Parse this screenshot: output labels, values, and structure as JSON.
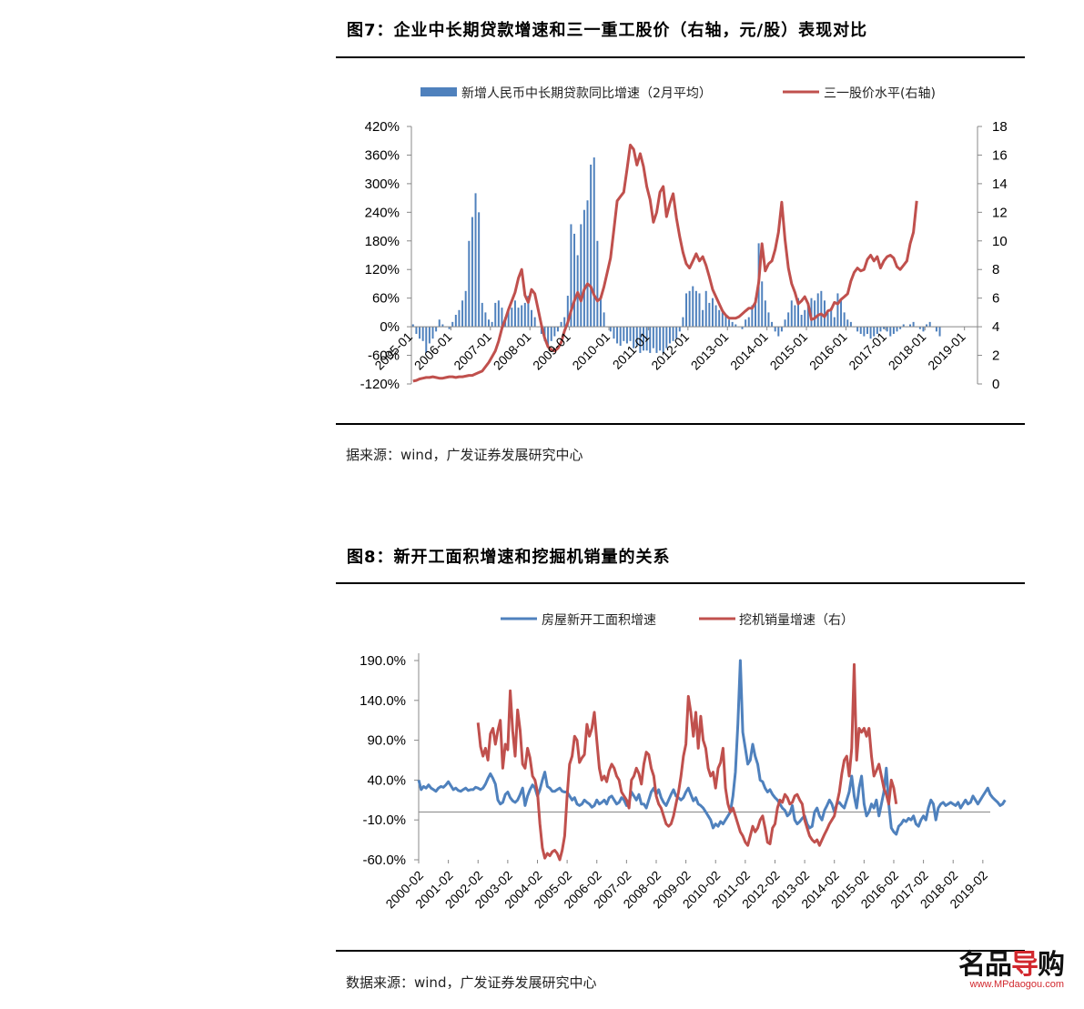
{
  "fig7": {
    "title": "图7：企业中长期贷款增速和三一重工股价（右轴，元/股）表现对比",
    "source": "据来源：wind，广发证券发展研究中心",
    "legend_bar": "新增人民币中长期贷款同比增速（2月平均）",
    "legend_line": "三一股价水平(右轴)",
    "y_left_ticks": [
      "420%",
      "360%",
      "300%",
      "240%",
      "180%",
      "120%",
      "60%",
      "0%",
      "-60%",
      "-120%"
    ],
    "y_right_ticks": [
      "18",
      "16",
      "14",
      "12",
      "10",
      "8",
      "6",
      "4",
      "2",
      "0"
    ],
    "x_ticks": [
      "2005-01",
      "2006-01",
      "2007-01",
      "2008-01",
      "2009-01",
      "2010-01",
      "2011-01",
      "2012-01",
      "2013-01",
      "2014-01",
      "2015-01",
      "2016-01",
      "2017-01",
      "2018-01",
      "2019-01"
    ]
  },
  "fig8": {
    "title": "图8：新开工面积增速和挖掘机销量的关系",
    "source": "数据来源：wind，广发证券发展研究中心",
    "legend_blue": "房屋新开工面积增速",
    "legend_red": "挖机销量增速（右）",
    "y_ticks": [
      "190.0%",
      "140.0%",
      "90.0%",
      "40.0%",
      "-10.0%",
      "-60.0%"
    ],
    "x_ticks": [
      "2000-02",
      "2001-02",
      "2002-02",
      "2003-02",
      "2004-02",
      "2005-02",
      "2006-02",
      "2007-02",
      "2008-02",
      "2009-02",
      "2010-02",
      "2011-02",
      "2012-02",
      "2013-02",
      "2014-02",
      "2015-02",
      "2016-02",
      "2017-02",
      "2018-02",
      "2019-02"
    ]
  },
  "watermark": {
    "logo_main": "名品",
    "logo_accent": "导",
    "logo_end": "购",
    "url": "www.MPdaogou.com"
  },
  "colors": {
    "bar": "#4f81bd",
    "stock_line": "#c0504d",
    "blue_line": "#4f81bd",
    "red_line": "#c0504d"
  },
  "chart_data": [
    {
      "type": "bar+line",
      "title": "企业中长期贷款增速和三一重工股价（右轴，元/股）表现对比",
      "y_left_lim": [
        -1.2,
        4.2
      ],
      "y_right_lim": [
        0,
        18
      ],
      "x_range": [
        2005.0,
        2019.33
      ],
      "series": [
        {
          "name": "新增人民币中长期贷款同比增速（2月平均）",
          "axis": "left",
          "kind": "bar",
          "x_start": 2005.0,
          "step_months": 1,
          "values": [
            0.05,
            -0.15,
            -0.25,
            -0.3,
            -0.55,
            -0.35,
            -0.25,
            -0.1,
            0.15,
            0.05,
            0.0,
            -0.05,
            0.1,
            0.25,
            0.35,
            0.55,
            0.75,
            1.8,
            2.3,
            2.8,
            2.4,
            0.5,
            0.3,
            0.15,
            0.1,
            0.5,
            0.55,
            0.4,
            0.2,
            0.35,
            0.4,
            0.55,
            0.4,
            0.45,
            0.5,
            0.65,
            0.35,
            0.2,
            0.0,
            -0.15,
            -0.3,
            -0.4,
            -0.3,
            -0.2,
            -0.1,
            0.1,
            0.2,
            0.65,
            2.15,
            1.95,
            1.5,
            2.15,
            2.45,
            2.65,
            3.4,
            3.55,
            1.8,
            0.65,
            0.3,
            0.0,
            -0.1,
            -0.25,
            -0.35,
            -0.4,
            -0.3,
            -0.35,
            -0.3,
            -0.45,
            -0.4,
            -0.55,
            -0.5,
            -0.5,
            -0.55,
            -0.45,
            -0.55,
            -0.5,
            -0.55,
            -0.45,
            -0.35,
            -0.3,
            -0.25,
            -0.1,
            0.2,
            0.7,
            0.75,
            0.85,
            0.75,
            0.7,
            0.35,
            0.75,
            0.5,
            0.6,
            0.45,
            0.35,
            0.3,
            0.25,
            0.15,
            0.1,
            0.05,
            0.0,
            -0.05,
            0.15,
            0.2,
            0.45,
            0.6,
            1.75,
            0.95,
            0.55,
            0.3,
            0.1,
            -0.1,
            -0.2,
            -0.1,
            0.15,
            0.3,
            0.55,
            0.45,
            0.6,
            0.25,
            0.35,
            0.5,
            0.6,
            0.55,
            0.7,
            0.75,
            0.55,
            0.3,
            0.4,
            0.2,
            0.7,
            0.55,
            0.3,
            0.15,
            0.1,
            0.0,
            -0.1,
            -0.15,
            -0.2,
            -0.15,
            -0.25,
            -0.2,
            -0.15,
            -0.1,
            -0.05,
            -0.1,
            -0.2,
            -0.15,
            -0.1,
            -0.05,
            0.05,
            0.0,
            0.05,
            0.1,
            0.0,
            -0.05,
            -0.1,
            0.05,
            0.1,
            0.0,
            -0.1,
            -0.2
          ]
        },
        {
          "name": "三一股价水平(右轴)",
          "axis": "right",
          "kind": "line",
          "x_start": 2005.0,
          "step_months": 1,
          "values": [
            0.2,
            0.25,
            0.35,
            0.4,
            0.45,
            0.45,
            0.5,
            0.45,
            0.4,
            0.4,
            0.45,
            0.5,
            0.5,
            0.45,
            0.5,
            0.5,
            0.55,
            0.6,
            0.6,
            0.7,
            0.8,
            0.9,
            1.2,
            1.5,
            1.9,
            2.3,
            3.0,
            3.9,
            4.5,
            5.2,
            5.8,
            6.4,
            7.4,
            8.0,
            6.2,
            5.7,
            6.6,
            6.3,
            5.2,
            4.1,
            3.2,
            2.6,
            2.4,
            2.3,
            2.5,
            2.9,
            3.7,
            4.3,
            5.1,
            5.8,
            6.4,
            5.8,
            6.6,
            7.0,
            6.8,
            6.2,
            5.8,
            6.0,
            6.8,
            7.8,
            8.8,
            10.8,
            12.8,
            13.1,
            13.4,
            15.0,
            16.7,
            16.4,
            15.3,
            16.1,
            15.2,
            13.8,
            12.9,
            11.3,
            12.0,
            13.4,
            13.8,
            11.7,
            12.6,
            13.3,
            11.6,
            10.3,
            9.2,
            8.4,
            8.1,
            8.6,
            9.1,
            8.6,
            8.9,
            8.3,
            7.5,
            6.6,
            6.1,
            5.6,
            5.1,
            4.8,
            4.6,
            4.6,
            4.6,
            4.7,
            4.9,
            5.1,
            5.3,
            5.3,
            5.7,
            7.1,
            9.8,
            7.9,
            8.4,
            8.6,
            9.4,
            10.6,
            12.7,
            10.1,
            8.1,
            7.0,
            6.4,
            5.6,
            5.8,
            6.1,
            5.6,
            4.5,
            4.6,
            4.8,
            4.9,
            4.7,
            5.1,
            5.2,
            5.7,
            5.6,
            5.9,
            6.1,
            6.3,
            7.2,
            7.8,
            8.1,
            7.9,
            8.0,
            8.7,
            9.0,
            8.6,
            8.9,
            8.1,
            8.6,
            8.9,
            9.0,
            8.8,
            8.2,
            8.0,
            8.3,
            8.6,
            9.8,
            10.6,
            12.8
          ]
        }
      ],
      "x_tick_labels": [
        "2005-01",
        "2006-01",
        "2007-01",
        "2008-01",
        "2009-01",
        "2010-01",
        "2011-01",
        "2012-01",
        "2013-01",
        "2014-01",
        "2015-01",
        "2016-01",
        "2017-01",
        "2018-01",
        "2019-01"
      ]
    },
    {
      "type": "line",
      "title": "新开工面积增速和挖掘机销量的关系",
      "ylim": [
        -0.6,
        1.9
      ],
      "x_range": [
        2000.0,
        2019.25
      ],
      "series": [
        {
          "name": "房屋新开工面积增速",
          "x_start": 2000.0,
          "step_months": 1,
          "values": [
            0.4,
            0.28,
            0.32,
            0.3,
            0.34,
            0.3,
            0.28,
            0.26,
            0.3,
            0.32,
            0.31,
            0.34,
            0.38,
            0.33,
            0.28,
            0.3,
            0.27,
            0.26,
            0.28,
            0.3,
            0.27,
            0.28,
            0.28,
            0.31,
            0.3,
            0.28,
            0.3,
            0.35,
            0.42,
            0.48,
            0.42,
            0.35,
            0.15,
            0.1,
            0.12,
            0.22,
            0.25,
            0.18,
            0.14,
            0.12,
            0.15,
            0.22,
            0.3,
            0.08,
            0.2,
            0.28,
            0.34,
            0.3,
            0.2,
            0.28,
            0.4,
            0.5,
            0.32,
            0.3,
            0.26,
            0.26,
            0.28,
            0.3,
            0.26,
            0.25,
            0.25,
            0.2,
            0.15,
            0.18,
            0.1,
            0.08,
            0.1,
            0.15,
            0.12,
            0.1,
            0.06,
            0.08,
            0.15,
            0.1,
            0.12,
            0.15,
            0.1,
            0.18,
            0.2,
            0.15,
            0.1,
            0.12,
            0.18,
            0.15,
            0.08,
            0.12,
            0.25,
            0.2,
            0.15,
            0.22,
            0.1,
            0.1,
            0.05,
            0.15,
            0.25,
            0.3,
            0.22,
            0.28,
            0.18,
            0.12,
            0.08,
            0.15,
            0.22,
            0.28,
            0.2,
            0.18,
            0.15,
            0.18,
            0.25,
            0.3,
            0.22,
            0.14,
            0.18,
            0.1,
            0.08,
            0.05,
            0.0,
            -0.05,
            -0.1,
            -0.2,
            -0.15,
            -0.18,
            -0.12,
            -0.15,
            -0.1,
            -0.05,
            0.0,
            0.2,
            0.5,
            1.1,
            1.9,
            1.0,
            0.8,
            0.6,
            0.65,
            0.85,
            0.7,
            0.6,
            0.4,
            0.38,
            0.3,
            0.25,
            0.28,
            0.22,
            0.18,
            0.15,
            0.1,
            0.05,
            0.02,
            -0.05,
            -0.02,
            0.08,
            -0.1,
            -0.15,
            -0.12,
            -0.08,
            -0.05,
            -0.15,
            -0.2,
            -0.18,
            0.0,
            0.05,
            -0.05,
            -0.1,
            0.02,
            0.08,
            0.15,
            0.1,
            0.0,
            0.1,
            0.12,
            0.08,
            0.05,
            0.15,
            0.25,
            0.45,
            0.2,
            0.05,
            0.3,
            0.45,
            0.1,
            -0.05,
            0.0,
            0.1,
            0.05,
            0.15,
            -0.05,
            0.1,
            0.25,
            0.55,
            0.1,
            -0.2,
            -0.25,
            -0.28,
            -0.18,
            -0.15,
            -0.1,
            -0.12,
            -0.08,
            -0.1,
            -0.05,
            -0.15,
            -0.18,
            -0.1,
            -0.05,
            -0.1,
            0.05,
            0.15,
            0.1,
            -0.1,
            0.05,
            0.1,
            0.12,
            0.08,
            0.1,
            0.12,
            0.1,
            0.08,
            0.12,
            0.05,
            0.1,
            0.15,
            0.1,
            0.12,
            0.2,
            0.15,
            0.1,
            0.15,
            0.2,
            0.25,
            0.3,
            0.22,
            0.18,
            0.15,
            0.12,
            0.08,
            0.1,
            0.15
          ]
        },
        {
          "name": "挖机销量增速（右）",
          "x_start": 2002.0,
          "step_months": 1,
          "values": [
            1.12,
            0.82,
            0.7,
            0.8,
            0.65,
            0.98,
            1.05,
            0.85,
            1.02,
            1.15,
            0.55,
            0.85,
            0.78,
            1.52,
            1.02,
            0.7,
            1.28,
            1.02,
            0.6,
            0.55,
            0.8,
            0.68,
            0.45,
            0.4,
            0.25,
            -0.15,
            -0.45,
            -0.58,
            -0.52,
            -0.55,
            -0.5,
            -0.48,
            -0.52,
            -0.6,
            -0.48,
            -0.3,
            0.2,
            0.6,
            0.7,
            0.95,
            0.9,
            0.62,
            0.68,
            0.72,
            1.1,
            0.95,
            1.05,
            1.25,
            0.9,
            0.55,
            0.4,
            0.45,
            0.38,
            0.52,
            0.6,
            0.55,
            0.45,
            0.4,
            0.25,
            0.2,
            0.15,
            0.05,
            0.4,
            0.45,
            0.55,
            0.48,
            0.35,
            0.6,
            0.75,
            0.72,
            0.55,
            0.45,
            0.2,
            0.1,
            0.05,
            -0.05,
            -0.15,
            -0.18,
            -0.15,
            -0.05,
            0.1,
            0.25,
            0.45,
            0.7,
            0.85,
            1.45,
            1.25,
            0.95,
            1.25,
            0.8,
            1.2,
            0.9,
            0.8,
            0.55,
            0.45,
            0.5,
            0.3,
            0.55,
            0.62,
            0.8,
            0.3,
            0.1,
            0.0,
            0.05,
            -0.05,
            -0.15,
            -0.25,
            -0.3,
            -0.38,
            -0.42,
            -0.3,
            -0.18,
            -0.25,
            -0.2,
            -0.1,
            -0.05,
            -0.2,
            -0.38,
            -0.4,
            -0.2,
            -0.15,
            0.05,
            0.15,
            0.12,
            0.22,
            0.18,
            0.1,
            0.12,
            0.2,
            0.22,
            0.15,
            0.1,
            -0.1,
            -0.2,
            -0.3,
            -0.35,
            -0.38,
            -0.35,
            -0.42,
            -0.35,
            -0.28,
            -0.22,
            -0.15,
            -0.1,
            -0.05,
            0.1,
            0.25,
            0.48,
            0.65,
            0.7,
            0.45,
            0.8,
            1.85,
            0.65,
            1.05,
            1.0,
            1.05,
            0.95,
            1.05,
            0.7,
            0.45,
            0.52,
            0.6,
            0.45,
            0.3,
            0.22,
            0.1,
            0.4,
            0.3,
            0.1
          ]
        }
      ],
      "x_tick_labels": [
        "2000-02",
        "2001-02",
        "2002-02",
        "2003-02",
        "2004-02",
        "2005-02",
        "2006-02",
        "2007-02",
        "2008-02",
        "2009-02",
        "2010-02",
        "2011-02",
        "2012-02",
        "2013-02",
        "2014-02",
        "2015-02",
        "2016-02",
        "2017-02",
        "2018-02",
        "2019-02"
      ]
    }
  ]
}
